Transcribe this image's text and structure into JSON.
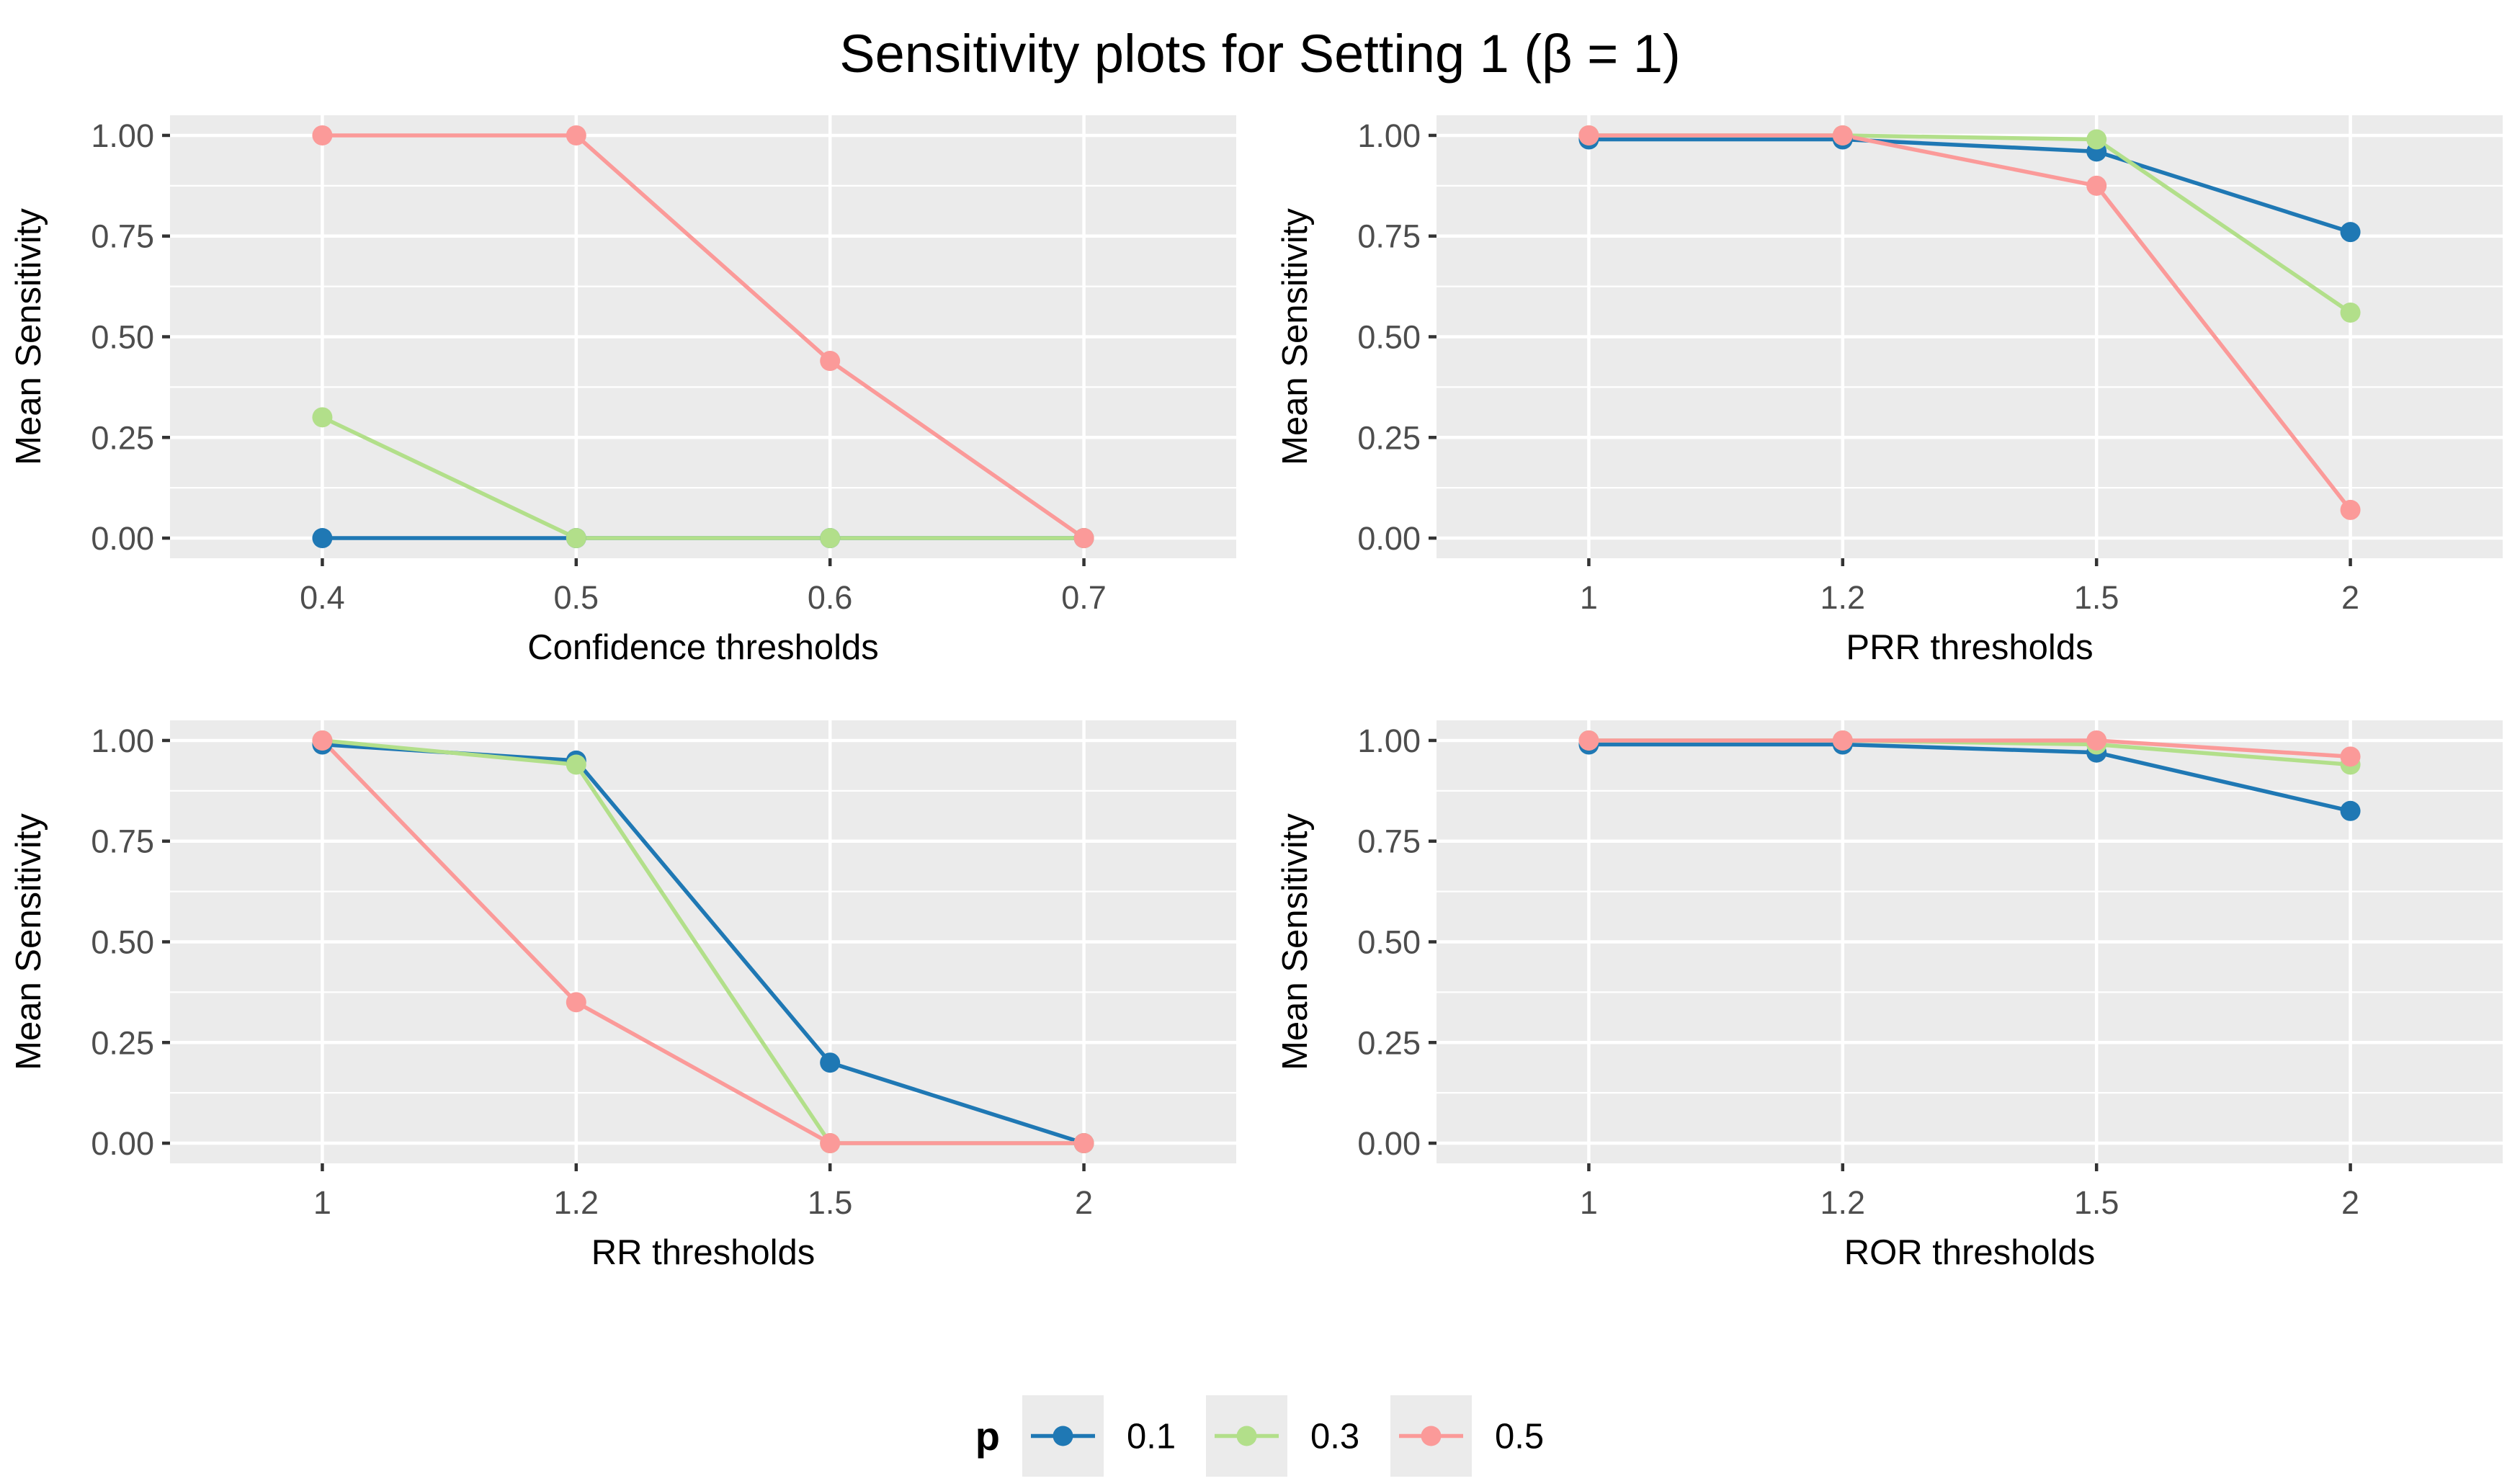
{
  "figure": {
    "title": "Sensitivity plots for Setting 1 (β = 1)"
  },
  "legend": {
    "title": "p",
    "entries": [
      {
        "label": "0.1",
        "color": "#1f78b4"
      },
      {
        "label": "0.3",
        "color": "#b2df8a"
      },
      {
        "label": "0.5",
        "color": "#fb9a99"
      }
    ]
  },
  "chart_data": [
    {
      "type": "line",
      "xlabel": "Confidence thresholds",
      "ylabel": "Mean Sensitivity",
      "categories": [
        "0.4",
        "0.5",
        "0.6",
        "0.7"
      ],
      "ylim": [
        -0.05,
        1.05
      ],
      "yticks": [
        "0.00",
        "0.25",
        "0.50",
        "0.75",
        "1.00"
      ],
      "series": [
        {
          "name": "0.1",
          "values": [
            0,
            0,
            0,
            0
          ]
        },
        {
          "name": "0.3",
          "values": [
            0.3,
            0,
            0,
            0
          ]
        },
        {
          "name": "0.5",
          "values": [
            1.0,
            1.0,
            0.44,
            0
          ]
        }
      ]
    },
    {
      "type": "line",
      "xlabel": "PRR thresholds",
      "ylabel": "Mean Sensitivity",
      "categories": [
        "1",
        "1.2",
        "1.5",
        "2"
      ],
      "ylim": [
        -0.05,
        1.05
      ],
      "yticks": [
        "0.00",
        "0.25",
        "0.50",
        "0.75",
        "1.00"
      ],
      "series": [
        {
          "name": "0.1",
          "values": [
            0.99,
            0.99,
            0.96,
            0.76
          ]
        },
        {
          "name": "0.3",
          "values": [
            1.0,
            1.0,
            0.99,
            0.56
          ]
        },
        {
          "name": "0.5",
          "values": [
            1.0,
            1.0,
            0.875,
            0.07
          ]
        }
      ]
    },
    {
      "type": "line",
      "xlabel": "RR thresholds",
      "ylabel": "Mean Sensitivity",
      "categories": [
        "1",
        "1.2",
        "1.5",
        "2"
      ],
      "ylim": [
        -0.05,
        1.05
      ],
      "yticks": [
        "0.00",
        "0.25",
        "0.50",
        "0.75",
        "1.00"
      ],
      "series": [
        {
          "name": "0.1",
          "values": [
            0.99,
            0.95,
            0.2,
            0
          ]
        },
        {
          "name": "0.3",
          "values": [
            1.0,
            0.94,
            0,
            0
          ]
        },
        {
          "name": "0.5",
          "values": [
            1.0,
            0.35,
            0,
            0
          ]
        }
      ]
    },
    {
      "type": "line",
      "xlabel": "ROR thresholds",
      "ylabel": "Mean Sensitivity",
      "categories": [
        "1",
        "1.2",
        "1.5",
        "2"
      ],
      "ylim": [
        -0.05,
        1.05
      ],
      "yticks": [
        "0.00",
        "0.25",
        "0.50",
        "0.75",
        "1.00"
      ],
      "series": [
        {
          "name": "0.1",
          "values": [
            0.99,
            0.99,
            0.97,
            0.825
          ]
        },
        {
          "name": "0.3",
          "values": [
            1.0,
            1.0,
            0.99,
            0.94
          ]
        },
        {
          "name": "0.5",
          "values": [
            1.0,
            1.0,
            1.0,
            0.96
          ]
        }
      ]
    }
  ]
}
